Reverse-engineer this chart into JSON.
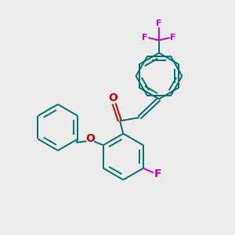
{
  "background_color": "#ebebeb",
  "bond_color": "#007070",
  "O_color": "#cc0000",
  "F_color": "#cc00cc",
  "lw": 1.4,
  "figsize": [
    3.0,
    3.0
  ],
  "dpi": 100,
  "xlim": [
    0,
    10
  ],
  "ylim": [
    0,
    10
  ]
}
